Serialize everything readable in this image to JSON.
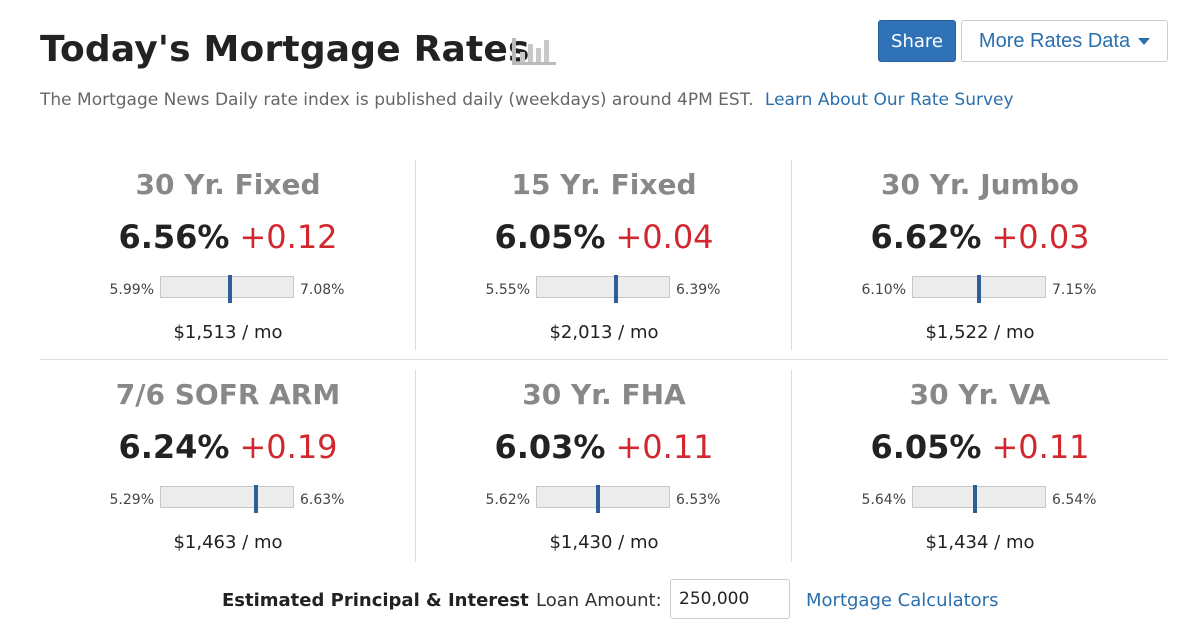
{
  "header": {
    "title": "Today's Mortgage Rates",
    "chart_icon": "bar-chart-icon",
    "subtitle": "The Mortgage News Daily rate index is published daily (weekdays) around 4PM EST.",
    "learn_link": "Learn About Our Rate Survey",
    "share_label": "Share",
    "more_label": "More Rates Data"
  },
  "rates": [
    {
      "name": "30 Yr. Fixed",
      "rate": "6.56%",
      "change": "+0.12",
      "low": "5.99%",
      "high": "7.08%",
      "level": 0.52,
      "payment": "$1,513 / mo"
    },
    {
      "name": "15 Yr. Fixed",
      "rate": "6.05%",
      "change": "+0.04",
      "low": "5.55%",
      "high": "6.39%",
      "level": 0.6,
      "payment": "$2,013 / mo"
    },
    {
      "name": "30 Yr. Jumbo",
      "rate": "6.62%",
      "change": "+0.03",
      "low": "6.10%",
      "high": "7.15%",
      "level": 0.5,
      "payment": "$1,522 / mo"
    },
    {
      "name": "7/6 SOFR ARM",
      "rate": "6.24%",
      "change": "+0.19",
      "low": "5.29%",
      "high": "6.63%",
      "level": 0.72,
      "payment": "$1,463 / mo"
    },
    {
      "name": "30 Yr. FHA",
      "rate": "6.03%",
      "change": "+0.11",
      "low": "5.62%",
      "high": "6.53%",
      "level": 0.46,
      "payment": "$1,430 / mo"
    },
    {
      "name": "30 Yr. VA",
      "rate": "6.05%",
      "change": "+0.11",
      "low": "5.64%",
      "high": "6.54%",
      "level": 0.47,
      "payment": "$1,434 / mo"
    }
  ],
  "footer": {
    "estimate_label": "Estimated Principal & Interest",
    "loan_label": "Loan Amount:",
    "loan_value": "250,000",
    "calc_link": "Mortgage Calculators"
  },
  "colors": {
    "accent": "#2f72b8",
    "link": "#2a6fad",
    "change_up": "#d0282e",
    "marker": "#2f5d9a"
  }
}
